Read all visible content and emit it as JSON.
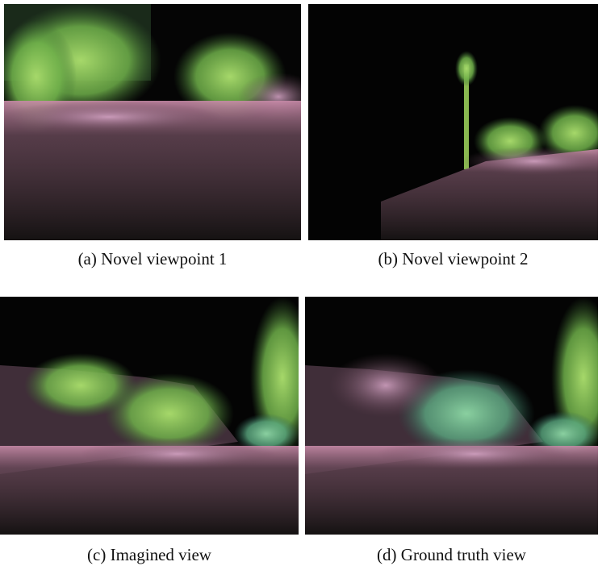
{
  "figure": {
    "panels": [
      {
        "caption": "(a) Novel viewpoint 1"
      },
      {
        "caption": "(b) Novel viewpoint 2"
      },
      {
        "caption": "(c) Imagined view"
      },
      {
        "caption": "(d) Ground truth view"
      }
    ]
  }
}
